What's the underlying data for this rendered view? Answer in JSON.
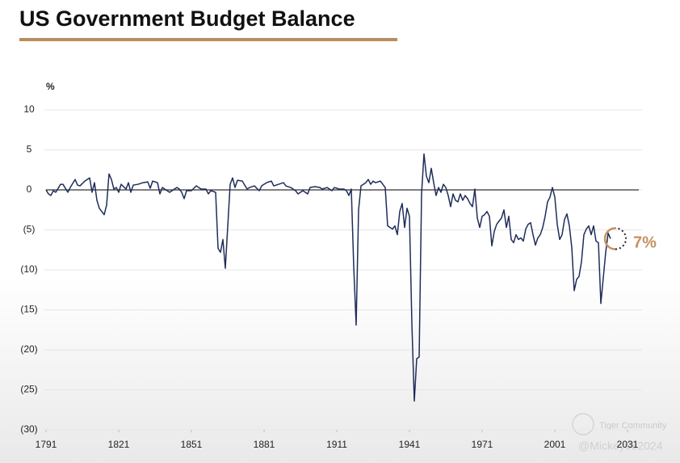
{
  "chart_data": {
    "type": "line",
    "title": "US Government Budget Balance",
    "y_label": "%",
    "annotation": "7%",
    "watermark": [
      "Tiger Community",
      "@Mickey082024"
    ],
    "x": [
      1791,
      1792,
      1793,
      1794,
      1795,
      1797,
      1798,
      1800,
      1801,
      1803,
      1804,
      1805,
      1807,
      1809,
      1810,
      1811,
      1812,
      1813,
      1815,
      1816,
      1817,
      1818,
      1819,
      1820,
      1821,
      1822,
      1824,
      1825,
      1826,
      1827,
      1829,
      1831,
      1833,
      1834,
      1835,
      1837,
      1838,
      1839,
      1841,
      1842,
      1843,
      1845,
      1846,
      1847,
      1848,
      1849,
      1851,
      1852,
      1853,
      1855,
      1857,
      1858,
      1859,
      1861,
      1862,
      1863,
      1864,
      1865,
      1867,
      1868,
      1869,
      1870,
      1872,
      1874,
      1875,
      1877,
      1879,
      1880,
      1882,
      1884,
      1885,
      1887,
      1889,
      1890,
      1892,
      1894,
      1895,
      1897,
      1898,
      1899,
      1900,
      1902,
      1904,
      1905,
      1907,
      1909,
      1910,
      1912,
      1914,
      1915,
      1916,
      1917,
      1918,
      1919,
      1920,
      1921,
      1923,
      1924,
      1925,
      1926,
      1927,
      1929,
      1930,
      1931,
      1932,
      1934,
      1935,
      1936,
      1937,
      1938,
      1939,
      1940,
      1941,
      1942,
      1943,
      1944,
      1945,
      1946,
      1947,
      1948,
      1949,
      1950,
      1951,
      1952,
      1953,
      1954,
      1955,
      1956,
      1957,
      1958,
      1959,
      1960,
      1961,
      1962,
      1963,
      1964,
      1965,
      1966,
      1967,
      1968,
      1969,
      1970,
      1971,
      1972,
      1973,
      1974,
      1975,
      1976,
      1977,
      1978,
      1979,
      1980,
      1981,
      1982,
      1983,
      1984,
      1985,
      1986,
      1987,
      1988,
      1989,
      1990,
      1991,
      1992,
      1993,
      1994,
      1995,
      1996,
      1997,
      1998,
      1999,
      2000,
      2001,
      2002,
      2003,
      2004,
      2005,
      2006,
      2007,
      2008,
      2009,
      2010,
      2011,
      2012,
      2013,
      2014,
      2015,
      2016,
      2017,
      2018,
      2019,
      2020,
      2021,
      2022,
      2023,
      2024
    ],
    "series": [
      {
        "name": "Budget balance",
        "color": "#1f2d5a",
        "values": [
          0,
          -0.5,
          -0.7,
          -0.1,
          -0.3,
          0.7,
          0.7,
          -0.3,
          0.3,
          1.3,
          0.6,
          0.5,
          1.1,
          1.5,
          -0.3,
          0.9,
          -1.3,
          -2.3,
          -3.1,
          -1.9,
          2.0,
          1.3,
          0.1,
          0.3,
          -0.3,
          0.7,
          0.1,
          0.9,
          -0.3,
          0.6,
          0.7,
          0.9,
          1.0,
          0.2,
          1.1,
          0.9,
          -0.5,
          0.3,
          -0.1,
          -0.3,
          -0.1,
          0.3,
          0.1,
          -0.3,
          -1.1,
          -0.1,
          -0.1,
          0.2,
          0.5,
          0.1,
          0.1,
          -0.5,
          -0.1,
          -0.3,
          -7.3,
          -7.8,
          -6.2,
          -9.8,
          0.7,
          1.5,
          0.3,
          1.2,
          1.1,
          0.1,
          0.3,
          0.5,
          -0.1,
          0.5,
          0.9,
          1.1,
          0.5,
          0.7,
          0.9,
          0.5,
          0.3,
          -0.1,
          -0.5,
          -0.1,
          -0.3,
          -0.5,
          0.3,
          0.4,
          0.3,
          0.1,
          0.3,
          -0.1,
          0.3,
          0.1,
          0.1,
          -0.1,
          -0.7,
          0.1,
          -9.6,
          -16.9,
          -2.5,
          0.5,
          0.9,
          1.3,
          0.7,
          1.1,
          0.9,
          1.1,
          0.7,
          0.3,
          -4.5,
          -4.9,
          -4.5,
          -5.6,
          -2.7,
          -1.7,
          -4.7,
          -2.3,
          -3.3,
          -16.7,
          -26.4,
          -21.1,
          -20.9,
          -0.5,
          4.5,
          1.7,
          0.9,
          2.7,
          0.9,
          -0.7,
          0.3,
          -0.3,
          0.7,
          0.3,
          -0.7,
          -2.1,
          -0.5,
          -1.3,
          -1.5,
          -0.5,
          -1.3,
          -0.7,
          -1.1,
          -1.7,
          -2.1,
          0.1,
          -3.5,
          -4.7,
          -3.3,
          -3.1,
          -2.7,
          -3.3,
          -7.0,
          -5.2,
          -4.3,
          -3.9,
          -3.5,
          -2.5,
          -4.7,
          -3.3,
          -6.2,
          -6.6,
          -5.6,
          -6.2,
          -6.0,
          -6.4,
          -4.9,
          -4.3,
          -4.1,
          -5.6,
          -6.9,
          -6.0,
          -5.6,
          -4.7,
          -3.3,
          -1.5,
          -0.9,
          0.3,
          -0.9,
          -4.3,
          -6.2,
          -5.6,
          -3.7,
          -3.0,
          -4.5,
          -7.2,
          -12.6,
          -11.2,
          -10.8,
          -9.0,
          -5.6,
          -4.9,
          -4.5,
          -5.6,
          -4.5,
          -6.4,
          -6.6,
          -14.2,
          -11.0,
          -7.8,
          -5.4,
          -6.1
        ]
      }
    ],
    "xlim": [
      1791,
      2037
    ],
    "xticks": [
      1791,
      1821,
      1851,
      1881,
      1911,
      1941,
      1971,
      2001,
      2031
    ],
    "ylim": [
      -30,
      10
    ],
    "yticks": [
      {
        "value": -30,
        "label": "(30)"
      },
      {
        "value": -25,
        "label": "(25)"
      },
      {
        "value": -20,
        "label": "(20)"
      },
      {
        "value": -15,
        "label": "(15)"
      },
      {
        "value": -10,
        "label": "(10)"
      },
      {
        "value": -5,
        "label": "(5)"
      },
      0,
      5,
      10
    ],
    "grid": true,
    "zero_line": true,
    "accent_color": "#c39260"
  }
}
